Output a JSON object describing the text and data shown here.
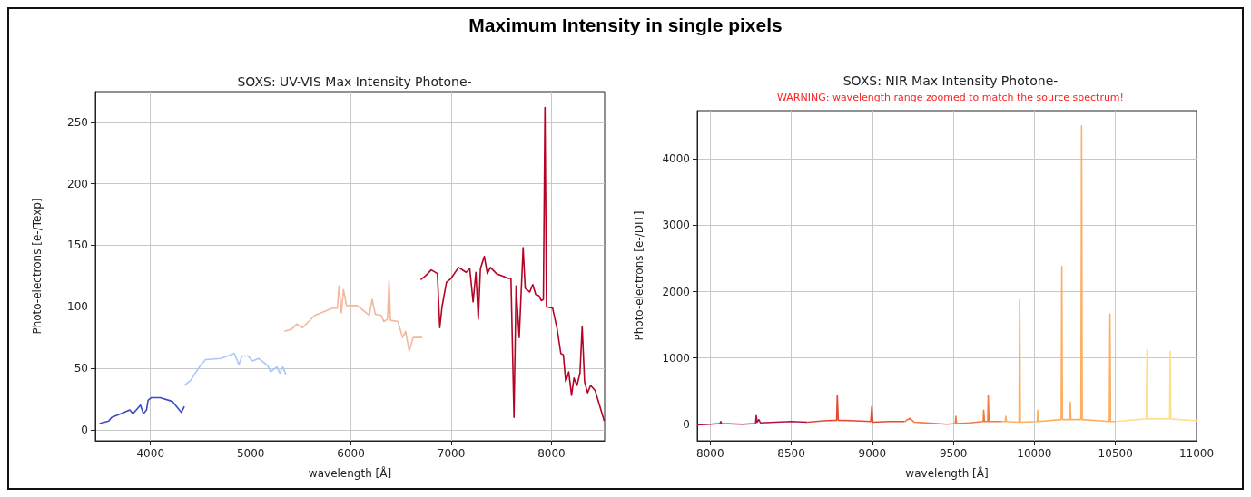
{
  "chart_data": [
    {
      "type": "line",
      "title": "Maximum Intensity in single pixels",
      "subtitle": "SOXS: UV-VIS Max Intensity Photone-",
      "xlabel": "wavelength [Å]",
      "ylabel": "Photo-electrons [e-/Texp]",
      "xlim": [
        3450,
        8530
      ],
      "xticks": [
        4000,
        5000,
        6000,
        7000,
        8000
      ],
      "ylim": [
        -9,
        275
      ],
      "yticks": [
        0,
        50,
        100,
        150,
        200,
        250
      ],
      "grid": true,
      "marker": "none",
      "line_style": "solid",
      "series": [
        {
          "color": "#3b4cc0",
          "x": [
            3492,
            3583,
            3613,
            3704,
            3794,
            3825,
            3900,
            3930,
            3961,
            3976,
            4006,
            4097,
            4218,
            4308,
            4338
          ],
          "values": [
            5,
            7,
            10,
            13,
            16,
            13,
            20,
            13,
            16,
            24,
            26,
            26,
            23,
            14,
            19
          ]
        },
        {
          "color": "#aac7fd",
          "x": [
            4338,
            4399,
            4505,
            4550,
            4701,
            4837,
            4882,
            4913,
            4973,
            5018,
            5079,
            5170,
            5199,
            5260,
            5290,
            5321,
            5351
          ],
          "values": [
            36,
            40,
            53,
            57,
            58,
            62,
            53,
            60,
            60,
            56,
            58,
            52,
            47,
            51,
            46,
            51,
            45
          ]
        },
        {
          "color": "#f4b79c",
          "x": [
            5336,
            5412,
            5457,
            5517,
            5638,
            5729,
            5820,
            5865,
            5880,
            5904,
            5925,
            5955,
            6061,
            6183,
            6212,
            6243,
            6303,
            6327,
            6364,
            6379,
            6394,
            6469,
            6514,
            6545,
            6581,
            6620,
            6710
          ],
          "values": [
            80,
            82,
            86,
            83,
            93,
            96,
            99,
            99,
            117,
            95,
            114,
            101,
            101,
            93,
            106,
            94,
            93,
            88,
            90,
            121,
            89,
            88,
            75,
            80,
            64,
            75,
            75
          ]
        },
        {
          "color": "#b40426",
          "x": [
            6695,
            6741,
            6801,
            6862,
            6886,
            6908,
            6953,
            6998,
            7073,
            7149,
            7185,
            7218,
            7246,
            7270,
            7291,
            7330,
            7360,
            7391,
            7451,
            7572,
            7596,
            7626,
            7647,
            7678,
            7717,
            7738,
            7783,
            7813,
            7843,
            7874,
            7898,
            7919,
            7935,
            7950,
            8011,
            8056,
            8093,
            8118,
            8142,
            8172,
            8200,
            8224,
            8254,
            8284,
            8306,
            8330,
            8360,
            8390,
            8435,
            8526
          ],
          "values": [
            122,
            125,
            130,
            127,
            83,
            100,
            120,
            123,
            132,
            128,
            131,
            104,
            128,
            90,
            131,
            141,
            127,
            132,
            127,
            123,
            123,
            10,
            117,
            75,
            148,
            115,
            112,
            118,
            110,
            109,
            105,
            106,
            262,
            100,
            99,
            82,
            62,
            61,
            39,
            47,
            28,
            42,
            36,
            46,
            84,
            39,
            30,
            36,
            32,
            7
          ]
        }
      ]
    },
    {
      "type": "line",
      "title": "SOXS: NIR Max Intensity Photone-",
      "annotations": [
        "WARNING: wavelength range zoomed to match the source spectrum!"
      ],
      "xlabel": "wavelength [Å]",
      "ylabel": "Photo-electrons [e-/DIT]",
      "xlim": [
        7920,
        11000
      ],
      "xticks": [
        8000,
        8500,
        9000,
        9500,
        10000,
        10500,
        11000
      ],
      "ylim": [
        -250,
        4730
      ],
      "yticks": [
        0,
        1000,
        2000,
        3000,
        4000
      ],
      "grid": true,
      "marker": "none",
      "line_style": "solid",
      "series": [
        {
          "color": "#b5123f",
          "x": [
            7920,
            8000,
            8060,
            8065,
            8070,
            8200,
            8280,
            8284,
            8290,
            8300,
            8310,
            8400,
            8500,
            8600
          ],
          "values": [
            -10,
            0,
            10,
            40,
            10,
            0,
            10,
            130,
            30,
            70,
            20,
            30,
            40,
            30
          ]
        },
        {
          "color": "#e34a33",
          "x": [
            8600,
            8650,
            8700,
            8780,
            8784,
            8790,
            8900,
            8990,
            8997,
            9003,
            9100,
            9200
          ],
          "values": [
            30,
            40,
            50,
            60,
            440,
            60,
            50,
            40,
            270,
            30,
            40,
            40
          ]
        },
        {
          "color": "#f4793e",
          "x": [
            9200,
            9230,
            9260,
            9400,
            9460,
            9512,
            9515,
            9520,
            9600,
            9684,
            9687,
            9692,
            9712,
            9715,
            9720,
            9800
          ],
          "values": [
            40,
            90,
            30,
            10,
            0,
            10,
            120,
            10,
            20,
            40,
            210,
            40,
            40,
            440,
            40,
            40
          ]
        },
        {
          "color": "#fdae61",
          "x": [
            9800,
            9820,
            9823,
            9828,
            9905,
            9909,
            9913,
            10018,
            10021,
            10025,
            10165,
            10169,
            10173,
            10218,
            10221,
            10225,
            10287,
            10291,
            10295,
            10462,
            10466,
            10470,
            10500
          ],
          "values": [
            40,
            40,
            120,
            40,
            30,
            1880,
            30,
            40,
            210,
            40,
            70,
            2380,
            70,
            70,
            330,
            70,
            70,
            4500,
            70,
            40,
            1660,
            40,
            40
          ]
        },
        {
          "color": "#fee08b",
          "x": [
            10500,
            10690,
            10694,
            10698,
            10834,
            10838,
            10842,
            11000
          ],
          "values": [
            40,
            80,
            1120,
            80,
            80,
            1100,
            80,
            50
          ]
        }
      ]
    }
  ]
}
